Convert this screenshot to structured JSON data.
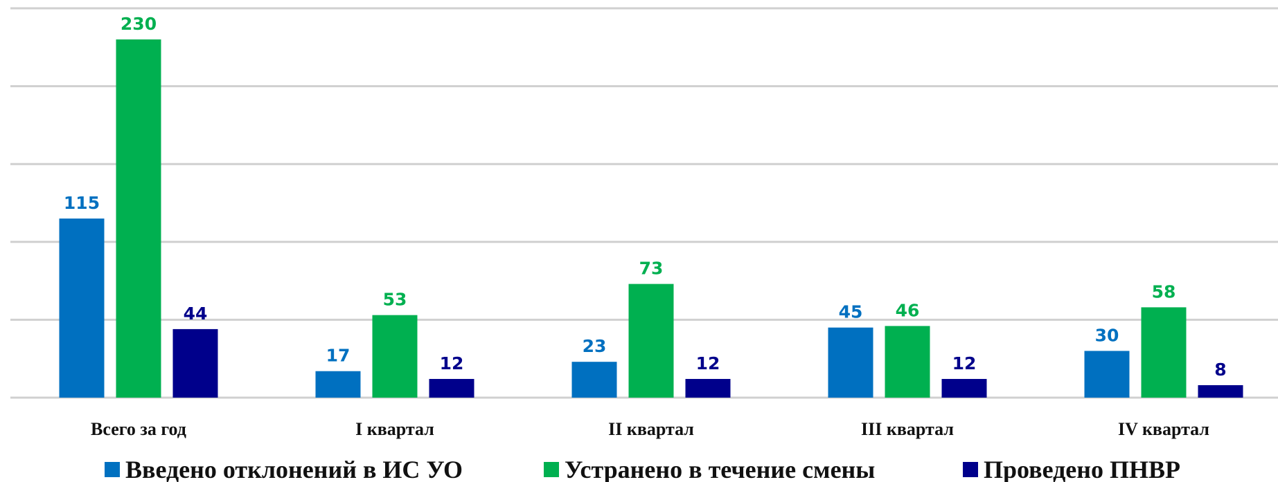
{
  "chart_data": {
    "type": "bar",
    "categories": [
      "Всего за год",
      "I квартал",
      "II квартал",
      "III квартал",
      "IV квартал"
    ],
    "series": [
      {
        "name": "Введено отклонений в ИС УО",
        "color": "#0070c0",
        "values": [
          115,
          17,
          23,
          45,
          30
        ]
      },
      {
        "name": "Устранено в течение смены",
        "color": "#00b050",
        "values": [
          230,
          53,
          73,
          46,
          58
        ]
      },
      {
        "name": "Проведено ПНВР",
        "color": "#00008b",
        "values": [
          44,
          12,
          12,
          12,
          8
        ]
      }
    ],
    "ylim": [
      0,
      250
    ],
    "yticks": [
      0,
      50,
      100,
      150,
      200,
      250
    ],
    "grid": true,
    "legend": "bottom"
  }
}
